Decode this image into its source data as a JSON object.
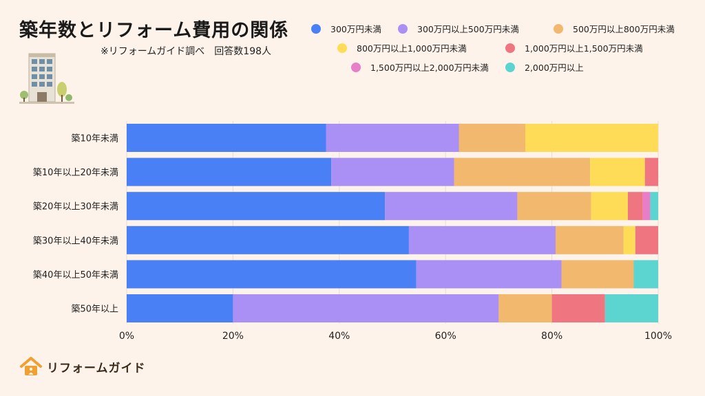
{
  "title": "築年数とリフォーム費用の関係",
  "subtitle": "※リフォームガイド調べ　回答数198人",
  "brand": {
    "name": "リフォームガイド",
    "icon": "house-icon",
    "color": "#f0a030"
  },
  "chart_data": {
    "type": "bar",
    "orientation": "horizontal",
    "stacked": true,
    "categories": [
      "築10年未満",
      "築10年以上20年未満",
      "築20年以上30年未満",
      "築30年以上40年未満",
      "築40年以上50年未満",
      "築50年以上"
    ],
    "series": [
      {
        "name": "300万円未満",
        "color": "#4a80f5",
        "values": [
          37.5,
          38.5,
          48.6,
          53.1,
          54.5,
          20.0
        ]
      },
      {
        "name": "300万円以上500万円未満",
        "color": "#aa8ff5",
        "values": [
          25.0,
          23.1,
          24.9,
          27.6,
          27.3,
          50.0
        ]
      },
      {
        "name": "500万円以上800万円未満",
        "color": "#f2b86d",
        "values": [
          12.5,
          25.6,
          13.9,
          12.8,
          13.6,
          10.0
        ]
      },
      {
        "name": "800万円以上1,000万円未満",
        "color": "#ffdc57",
        "values": [
          25.0,
          10.3,
          6.9,
          2.2,
          0,
          0
        ]
      },
      {
        "name": "1,000万円以上1,500万円未満",
        "color": "#ef7680",
        "values": [
          0,
          2.5,
          2.8,
          4.3,
          0,
          10.0
        ]
      },
      {
        "name": "1,500万円以上2,000万円未満",
        "color": "#e87ec8",
        "values": [
          0,
          0,
          1.4,
          0,
          0,
          0
        ]
      },
      {
        "name": "2,000万円以上",
        "color": "#5cd4d0",
        "values": [
          0,
          0,
          1.5,
          0,
          4.6,
          10.0
        ]
      }
    ],
    "xticks": [
      "0%",
      "20%",
      "40%",
      "60%",
      "80%",
      "100%"
    ],
    "xlim": [
      0,
      100
    ],
    "legend_position": "top-right",
    "grid": true
  }
}
